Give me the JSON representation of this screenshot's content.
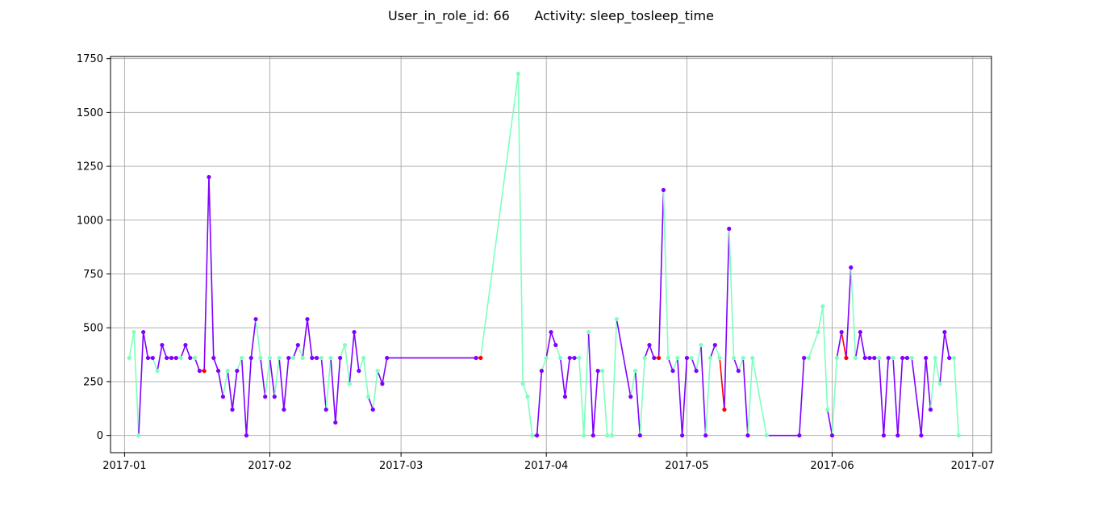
{
  "figure": {
    "title": "User_in_role_id: 66      Activity: sleep_tosleep_time"
  },
  "chart_data": {
    "type": "line",
    "title": "User_in_role_id: 66      Activity: sleep_tosleep_time",
    "xlabel": "",
    "ylabel": "",
    "x_axis_type": "date",
    "xlim": [
      "2016-12-29",
      "2017-07-05"
    ],
    "ylim": [
      -80,
      1760
    ],
    "xticks": [
      "2017-01-01",
      "2017-02-01",
      "2017-03-01",
      "2017-04-01",
      "2017-05-01",
      "2017-06-01",
      "2017-07-01"
    ],
    "xtick_labels": [
      "2017-01",
      "2017-02",
      "2017-03",
      "2017-04",
      "2017-05",
      "2017-06",
      "2017-07"
    ],
    "yticks": [
      0,
      250,
      500,
      750,
      1000,
      1250,
      1500,
      1750
    ],
    "ytick_labels": [
      "0",
      "250",
      "500",
      "750",
      "1000",
      "1250",
      "1500",
      "1750"
    ],
    "grid": true,
    "legend": "none",
    "colors": {
      "green": "#7fffbf",
      "purple": "#8000ff",
      "red": "#ff0000"
    },
    "points": [
      {
        "x": "2017-01-02",
        "y": 360,
        "c": "green"
      },
      {
        "x": "2017-01-03",
        "y": 480,
        "c": "green"
      },
      {
        "x": "2017-01-04",
        "y": 0,
        "c": "green"
      },
      {
        "x": "2017-01-05",
        "y": 480,
        "c": "purple"
      },
      {
        "x": "2017-01-06",
        "y": 360,
        "c": "purple"
      },
      {
        "x": "2017-01-07",
        "y": 360,
        "c": "purple"
      },
      {
        "x": "2017-01-08",
        "y": 300,
        "c": "green"
      },
      {
        "x": "2017-01-09",
        "y": 420,
        "c": "purple"
      },
      {
        "x": "2017-01-10",
        "y": 360,
        "c": "purple"
      },
      {
        "x": "2017-01-11",
        "y": 360,
        "c": "purple"
      },
      {
        "x": "2017-01-12",
        "y": 360,
        "c": "purple"
      },
      {
        "x": "2017-01-13",
        "y": 360,
        "c": "green"
      },
      {
        "x": "2017-01-14",
        "y": 420,
        "c": "purple"
      },
      {
        "x": "2017-01-15",
        "y": 360,
        "c": "purple"
      },
      {
        "x": "2017-01-16",
        "y": 360,
        "c": "green"
      },
      {
        "x": "2017-01-17",
        "y": 300,
        "c": "purple"
      },
      {
        "x": "2017-01-18",
        "y": 300,
        "c": "red"
      },
      {
        "x": "2017-01-19",
        "y": 1200,
        "c": "purple"
      },
      {
        "x": "2017-01-20",
        "y": 360,
        "c": "purple"
      },
      {
        "x": "2017-01-21",
        "y": 300,
        "c": "purple"
      },
      {
        "x": "2017-01-22",
        "y": 180,
        "c": "purple"
      },
      {
        "x": "2017-01-23",
        "y": 300,
        "c": "green"
      },
      {
        "x": "2017-01-24",
        "y": 120,
        "c": "purple"
      },
      {
        "x": "2017-01-25",
        "y": 300,
        "c": "purple"
      },
      {
        "x": "2017-01-26",
        "y": 360,
        "c": "green"
      },
      {
        "x": "2017-01-27",
        "y": 0,
        "c": "purple"
      },
      {
        "x": "2017-01-28",
        "y": 360,
        "c": "purple"
      },
      {
        "x": "2017-01-29",
        "y": 540,
        "c": "purple"
      },
      {
        "x": "2017-01-30",
        "y": 360,
        "c": "green"
      },
      {
        "x": "2017-01-31",
        "y": 180,
        "c": "purple"
      },
      {
        "x": "2017-02-01",
        "y": 360,
        "c": "green"
      },
      {
        "x": "2017-02-02",
        "y": 180,
        "c": "purple"
      },
      {
        "x": "2017-02-03",
        "y": 360,
        "c": "green"
      },
      {
        "x": "2017-02-04",
        "y": 120,
        "c": "purple"
      },
      {
        "x": "2017-02-05",
        "y": 360,
        "c": "purple"
      },
      {
        "x": "2017-02-06",
        "y": 360,
        "c": "green"
      },
      {
        "x": "2017-02-07",
        "y": 420,
        "c": "purple"
      },
      {
        "x": "2017-02-08",
        "y": 360,
        "c": "green"
      },
      {
        "x": "2017-02-09",
        "y": 540,
        "c": "purple"
      },
      {
        "x": "2017-02-10",
        "y": 360,
        "c": "purple"
      },
      {
        "x": "2017-02-11",
        "y": 360,
        "c": "purple"
      },
      {
        "x": "2017-02-12",
        "y": 360,
        "c": "green"
      },
      {
        "x": "2017-02-13",
        "y": 120,
        "c": "purple"
      },
      {
        "x": "2017-02-14",
        "y": 360,
        "c": "green"
      },
      {
        "x": "2017-02-15",
        "y": 60,
        "c": "purple"
      },
      {
        "x": "2017-02-16",
        "y": 360,
        "c": "purple"
      },
      {
        "x": "2017-02-17",
        "y": 420,
        "c": "green"
      },
      {
        "x": "2017-02-18",
        "y": 240,
        "c": "green"
      },
      {
        "x": "2017-02-19",
        "y": 480,
        "c": "purple"
      },
      {
        "x": "2017-02-20",
        "y": 300,
        "c": "purple"
      },
      {
        "x": "2017-02-21",
        "y": 360,
        "c": "green"
      },
      {
        "x": "2017-02-22",
        "y": 180,
        "c": "green"
      },
      {
        "x": "2017-02-23",
        "y": 120,
        "c": "purple"
      },
      {
        "x": "2017-02-24",
        "y": 300,
        "c": "green"
      },
      {
        "x": "2017-02-25",
        "y": 240,
        "c": "purple"
      },
      {
        "x": "2017-02-26",
        "y": 360,
        "c": "purple"
      },
      {
        "x": "2017-03-17",
        "y": 360,
        "c": "purple"
      },
      {
        "x": "2017-03-18",
        "y": 360,
        "c": "red"
      },
      {
        "x": "2017-03-26",
        "y": 1680,
        "c": "green"
      },
      {
        "x": "2017-03-27",
        "y": 240,
        "c": "green"
      },
      {
        "x": "2017-03-28",
        "y": 180,
        "c": "green"
      },
      {
        "x": "2017-03-29",
        "y": 0,
        "c": "green"
      },
      {
        "x": "2017-03-30",
        "y": 0,
        "c": "purple"
      },
      {
        "x": "2017-03-31",
        "y": 300,
        "c": "purple"
      },
      {
        "x": "2017-04-01",
        "y": 360,
        "c": "green"
      },
      {
        "x": "2017-04-02",
        "y": 480,
        "c": "purple"
      },
      {
        "x": "2017-04-03",
        "y": 420,
        "c": "purple"
      },
      {
        "x": "2017-04-04",
        "y": 360,
        "c": "green"
      },
      {
        "x": "2017-04-05",
        "y": 180,
        "c": "purple"
      },
      {
        "x": "2017-04-06",
        "y": 360,
        "c": "purple"
      },
      {
        "x": "2017-04-07",
        "y": 360,
        "c": "purple"
      },
      {
        "x": "2017-04-08",
        "y": 360,
        "c": "green"
      },
      {
        "x": "2017-04-09",
        "y": 0,
        "c": "green"
      },
      {
        "x": "2017-04-10",
        "y": 480,
        "c": "green"
      },
      {
        "x": "2017-04-11",
        "y": 0,
        "c": "purple"
      },
      {
        "x": "2017-04-12",
        "y": 300,
        "c": "purple"
      },
      {
        "x": "2017-04-13",
        "y": 300,
        "c": "green"
      },
      {
        "x": "2017-04-14",
        "y": 0,
        "c": "green"
      },
      {
        "x": "2017-04-15",
        "y": 0,
        "c": "green"
      },
      {
        "x": "2017-04-16",
        "y": 540,
        "c": "green"
      },
      {
        "x": "2017-04-19",
        "y": 180,
        "c": "purple"
      },
      {
        "x": "2017-04-20",
        "y": 300,
        "c": "green"
      },
      {
        "x": "2017-04-21",
        "y": 0,
        "c": "purple"
      },
      {
        "x": "2017-04-22",
        "y": 360,
        "c": "green"
      },
      {
        "x": "2017-04-23",
        "y": 420,
        "c": "purple"
      },
      {
        "x": "2017-04-24",
        "y": 360,
        "c": "purple"
      },
      {
        "x": "2017-04-25",
        "y": 360,
        "c": "red"
      },
      {
        "x": "2017-04-26",
        "y": 1140,
        "c": "purple"
      },
      {
        "x": "2017-04-27",
        "y": 360,
        "c": "green"
      },
      {
        "x": "2017-04-28",
        "y": 300,
        "c": "purple"
      },
      {
        "x": "2017-04-29",
        "y": 360,
        "c": "green"
      },
      {
        "x": "2017-04-30",
        "y": 0,
        "c": "purple"
      },
      {
        "x": "2017-05-01",
        "y": 360,
        "c": "purple"
      },
      {
        "x": "2017-05-02",
        "y": 360,
        "c": "green"
      },
      {
        "x": "2017-05-03",
        "y": 300,
        "c": "purple"
      },
      {
        "x": "2017-05-04",
        "y": 420,
        "c": "green"
      },
      {
        "x": "2017-05-05",
        "y": 0,
        "c": "purple"
      },
      {
        "x": "2017-05-06",
        "y": 360,
        "c": "green"
      },
      {
        "x": "2017-05-07",
        "y": 420,
        "c": "purple"
      },
      {
        "x": "2017-05-08",
        "y": 360,
        "c": "green"
      },
      {
        "x": "2017-05-09",
        "y": 120,
        "c": "red"
      },
      {
        "x": "2017-05-10",
        "y": 960,
        "c": "purple"
      },
      {
        "x": "2017-05-11",
        "y": 360,
        "c": "green"
      },
      {
        "x": "2017-05-12",
        "y": 300,
        "c": "purple"
      },
      {
        "x": "2017-05-13",
        "y": 360,
        "c": "green"
      },
      {
        "x": "2017-05-14",
        "y": 0,
        "c": "purple"
      },
      {
        "x": "2017-05-15",
        "y": 360,
        "c": "green"
      },
      {
        "x": "2017-05-18",
        "y": 0,
        "c": "green"
      },
      {
        "x": "2017-05-25",
        "y": 0,
        "c": "purple"
      },
      {
        "x": "2017-05-26",
        "y": 360,
        "c": "purple"
      },
      {
        "x": "2017-05-27",
        "y": 360,
        "c": "green"
      },
      {
        "x": "2017-05-29",
        "y": 480,
        "c": "green"
      },
      {
        "x": "2017-05-30",
        "y": 600,
        "c": "green"
      },
      {
        "x": "2017-05-31",
        "y": 120,
        "c": "green"
      },
      {
        "x": "2017-06-01",
        "y": 0,
        "c": "purple"
      },
      {
        "x": "2017-06-02",
        "y": 360,
        "c": "green"
      },
      {
        "x": "2017-06-03",
        "y": 480,
        "c": "purple"
      },
      {
        "x": "2017-06-04",
        "y": 360,
        "c": "red"
      },
      {
        "x": "2017-06-05",
        "y": 780,
        "c": "purple"
      },
      {
        "x": "2017-06-06",
        "y": 360,
        "c": "green"
      },
      {
        "x": "2017-06-07",
        "y": 480,
        "c": "purple"
      },
      {
        "x": "2017-06-08",
        "y": 360,
        "c": "purple"
      },
      {
        "x": "2017-06-09",
        "y": 360,
        "c": "purple"
      },
      {
        "x": "2017-06-10",
        "y": 360,
        "c": "purple"
      },
      {
        "x": "2017-06-11",
        "y": 360,
        "c": "green"
      },
      {
        "x": "2017-06-12",
        "y": 0,
        "c": "purple"
      },
      {
        "x": "2017-06-13",
        "y": 360,
        "c": "purple"
      },
      {
        "x": "2017-06-14",
        "y": 360,
        "c": "green"
      },
      {
        "x": "2017-06-15",
        "y": 0,
        "c": "purple"
      },
      {
        "x": "2017-06-16",
        "y": 360,
        "c": "purple"
      },
      {
        "x": "2017-06-17",
        "y": 360,
        "c": "purple"
      },
      {
        "x": "2017-06-18",
        "y": 360,
        "c": "green"
      },
      {
        "x": "2017-06-20",
        "y": 0,
        "c": "purple"
      },
      {
        "x": "2017-06-21",
        "y": 360,
        "c": "purple"
      },
      {
        "x": "2017-06-22",
        "y": 120,
        "c": "purple"
      },
      {
        "x": "2017-06-23",
        "y": 360,
        "c": "green"
      },
      {
        "x": "2017-06-24",
        "y": 240,
        "c": "green"
      },
      {
        "x": "2017-06-25",
        "y": 480,
        "c": "purple"
      },
      {
        "x": "2017-06-26",
        "y": 360,
        "c": "purple"
      },
      {
        "x": "2017-06-27",
        "y": 360,
        "c": "green"
      },
      {
        "x": "2017-06-28",
        "y": 0,
        "c": "green"
      }
    ]
  }
}
